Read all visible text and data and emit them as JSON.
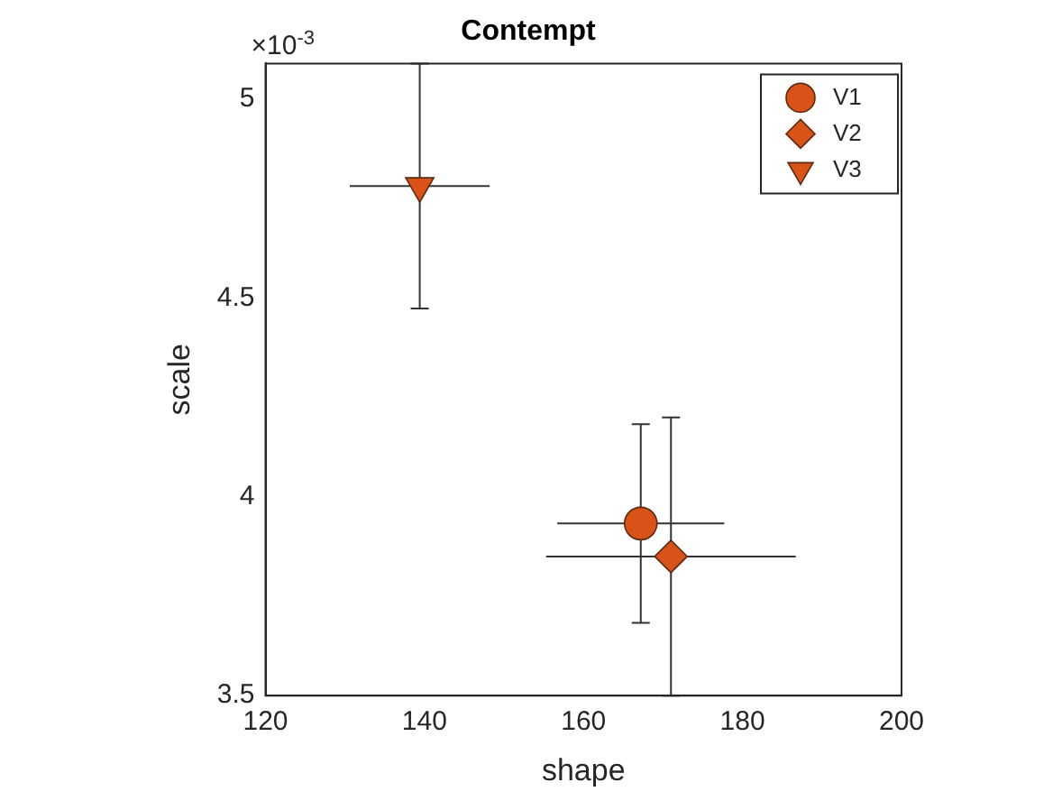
{
  "chart_data": {
    "type": "scatter",
    "title": "Contempt",
    "xlabel": "shape",
    "ylabel": "scale",
    "annotations": [
      "×10$^{-3}$"
    ],
    "xlim": [
      120,
      200
    ],
    "xticks": [
      120,
      140,
      160,
      180,
      200
    ],
    "ylim": [
      3.5,
      5.09
    ],
    "yticks": [
      3.5,
      4,
      4.5,
      5
    ],
    "grid": false,
    "legend": "top right",
    "series": [
      {
        "name": "V1",
        "color": "#d95319",
        "marker": "circle",
        "x": [
          167.2
        ],
        "values": [
          3.933
        ],
        "errors": [
          0.25
        ],
        "xerrors": [
          10.5
        ]
      },
      {
        "name": "V2",
        "color": "#d95319",
        "marker": "diamond",
        "x": [
          171.0
        ],
        "values": [
          3.85
        ],
        "errors": [
          0.35
        ],
        "xerrors": [
          15.7
        ]
      },
      {
        "name": "V3",
        "color": "#d95319",
        "marker": "triangle-down",
        "x": [
          139.4
        ],
        "values": [
          4.782
        ],
        "errors": [
          0.308
        ],
        "xerrors": [
          8.8
        ]
      }
    ]
  }
}
